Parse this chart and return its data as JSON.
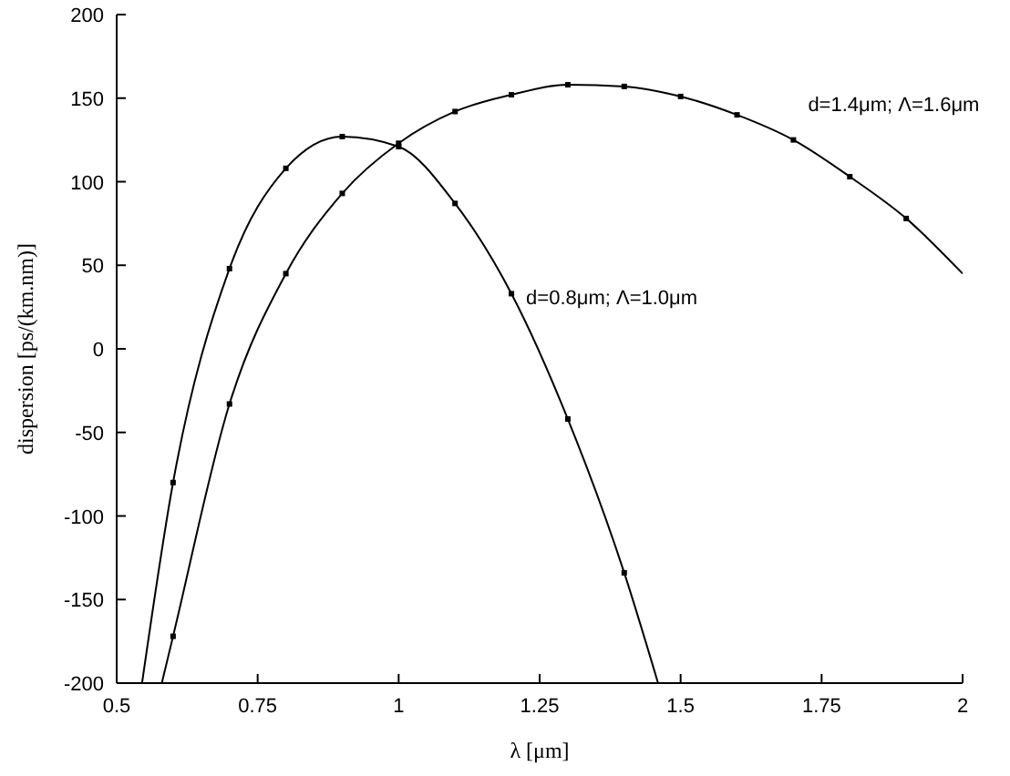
{
  "chart_data": {
    "type": "line",
    "xlabel": "λ [μm]",
    "ylabel": "dispersion [ps/(km.nm)]",
    "xlim": [
      0.5,
      2
    ],
    "xticks": [
      0.5,
      0.75,
      1,
      1.25,
      1.5,
      1.75,
      2
    ],
    "ylim": [
      -200,
      200
    ],
    "yticks": [
      -200,
      -150,
      -100,
      -50,
      0,
      50,
      100,
      150,
      200
    ],
    "grid": false,
    "series": [
      {
        "name": "d=0.8μm; Λ=1.0μm",
        "color": "#000000",
        "marker": "none",
        "x": [
          0.545,
          0.6,
          0.7,
          0.8,
          0.9,
          1.0,
          1.1,
          1.2,
          1.3,
          1.4,
          1.46
        ],
        "values": [
          -200,
          -80,
          48,
          108,
          127,
          121,
          87,
          33,
          -42,
          -134,
          -200
        ]
      },
      {
        "name": "d=1.4μm; Λ=1.6μm",
        "color": "#000000",
        "marker": "none",
        "x": [
          0.58,
          0.6,
          0.7,
          0.8,
          0.9,
          1.0,
          1.1,
          1.2,
          1.3,
          1.4,
          1.5,
          1.6,
          1.7,
          1.8,
          1.9,
          2.0
        ],
        "values": [
          -200,
          -172,
          -33,
          45,
          93,
          123,
          142,
          152,
          158,
          157,
          151,
          140,
          125,
          103,
          78,
          45
        ]
      },
      {
        "type": "scatter",
        "color": "#000000",
        "marker": "square",
        "x": [
          0.6,
          0.7,
          0.8,
          0.9,
          1.0,
          1.1,
          1.2,
          1.3,
          1.4
        ],
        "values": [
          -80,
          48,
          108,
          127,
          121,
          87,
          33,
          -42,
          -134
        ]
      },
      {
        "type": "scatter",
        "color": "#000000",
        "marker": "square",
        "x": [
          0.6,
          0.7,
          0.8,
          0.9,
          1.0,
          1.1,
          1.2,
          1.3,
          1.4,
          1.5,
          1.6,
          1.7,
          1.8,
          1.9
        ],
        "values": [
          -172,
          -33,
          45,
          93,
          123,
          142,
          152,
          158,
          157,
          151,
          140,
          125,
          103,
          78
        ]
      }
    ]
  }
}
